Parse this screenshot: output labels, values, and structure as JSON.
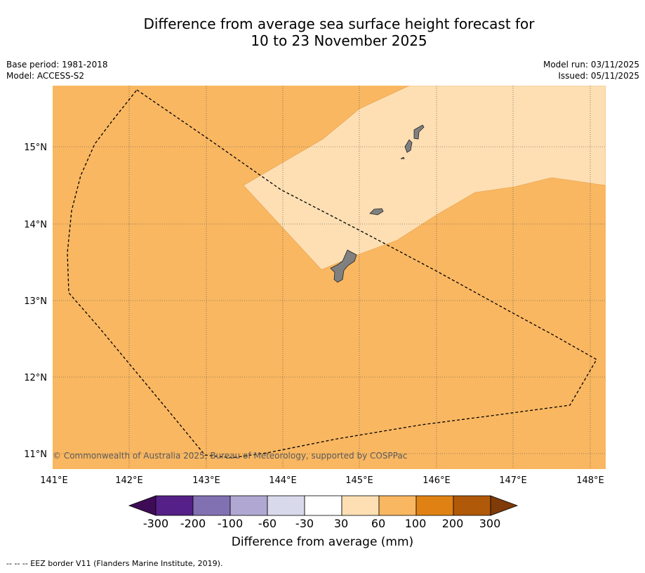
{
  "title_line1": "Difference from average sea surface height forecast for",
  "title_line2": "10 to 23 November 2025",
  "meta": {
    "base_period": "Base period: 1981-2018",
    "model": "Model: ACCESS-S2",
    "model_run": "Model run: 03/11/2025",
    "issued": "Issued: 05/11/2025"
  },
  "map": {
    "lat_labels": [
      "15°N",
      "14°N",
      "13°N",
      "12°N",
      "11°N"
    ],
    "lon_labels": [
      "141°E",
      "142°E",
      "143°E",
      "144°E",
      "145°E",
      "146°E",
      "147°E",
      "148°E"
    ],
    "copyright": "© Commonwealth of Australia 2025, Bureau of Meteorology, supported by COSPPac",
    "background_color": "#f9b761",
    "highlight_color": "#fddfb3",
    "land_color": "#808080"
  },
  "colorbar": {
    "title": "Difference from average (mm)",
    "labels": [
      "-300",
      "-200",
      "-100",
      "-60",
      "-30",
      "30",
      "60",
      "100",
      "200",
      "300"
    ],
    "colors": [
      "#3e0b57",
      "#552087",
      "#8271b2",
      "#b0a8d3",
      "#d9d9ec",
      "#ffffff",
      "#fddfb3",
      "#f9b761",
      "#e08213",
      "#b05908",
      "#7f3b08"
    ]
  },
  "footnote": "--  --  -- EEZ border V11 (Flanders Marine Institute, 2019)."
}
